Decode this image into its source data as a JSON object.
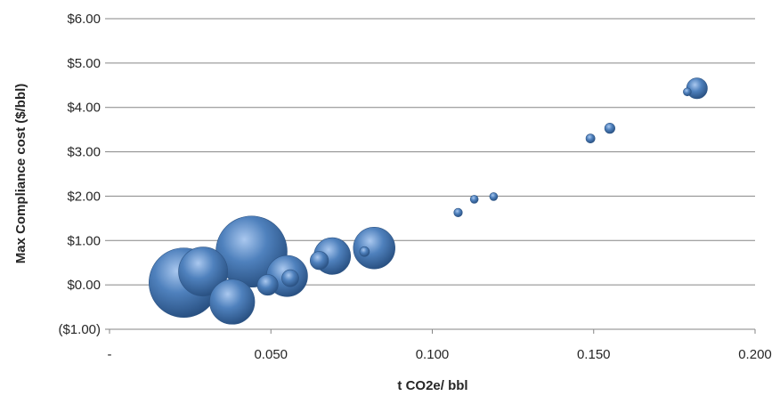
{
  "chart_data": {
    "type": "bubble",
    "title": "",
    "xlabel": "t CO2e/ bbl",
    "ylabel": "Max Compliance cost ($/bbl)",
    "xlim": [
      0,
      0.2
    ],
    "ylim": [
      -1,
      6
    ],
    "grid": "horizontal",
    "legend": "none",
    "x_ticks": [
      {
        "value": 0,
        "label": "-"
      },
      {
        "value": 0.05,
        "label": "0.050"
      },
      {
        "value": 0.1,
        "label": "0.100"
      },
      {
        "value": 0.15,
        "label": "0.150"
      },
      {
        "value": 0.2,
        "label": "0.200"
      }
    ],
    "y_ticks": [
      {
        "value": -1,
        "label": "($1.00)",
        "color": "#e0402b"
      },
      {
        "value": 0,
        "label": "$0.00"
      },
      {
        "value": 1,
        "label": "$1.00"
      },
      {
        "value": 2,
        "label": "$2.00"
      },
      {
        "value": 3,
        "label": "$3.00"
      },
      {
        "value": 4,
        "label": "$4.00"
      },
      {
        "value": 5,
        "label": "$5.00"
      },
      {
        "value": 6,
        "label": "$6.00"
      }
    ],
    "bubble_color": "#4f81bd",
    "points": [
      {
        "x": 0.023,
        "y": 0.05,
        "size": 100
      },
      {
        "x": 0.029,
        "y": 0.3,
        "size": 50
      },
      {
        "x": 0.044,
        "y": 0.75,
        "size": 105
      },
      {
        "x": 0.038,
        "y": -0.38,
        "size": 42
      },
      {
        "x": 0.055,
        "y": 0.2,
        "size": 35
      },
      {
        "x": 0.049,
        "y": 0.0,
        "size": 9
      },
      {
        "x": 0.056,
        "y": 0.15,
        "size": 6
      },
      {
        "x": 0.069,
        "y": 0.65,
        "size": 28
      },
      {
        "x": 0.065,
        "y": 0.55,
        "size": 7
      },
      {
        "x": 0.082,
        "y": 0.83,
        "size": 36
      },
      {
        "x": 0.079,
        "y": 0.75,
        "size": 2
      },
      {
        "x": 0.108,
        "y": 1.63,
        "size": 1.5
      },
      {
        "x": 0.113,
        "y": 1.93,
        "size": 1.3
      },
      {
        "x": 0.119,
        "y": 1.99,
        "size": 0.8
      },
      {
        "x": 0.149,
        "y": 3.3,
        "size": 1.7
      },
      {
        "x": 0.155,
        "y": 3.53,
        "size": 2.2
      },
      {
        "x": 0.182,
        "y": 4.43,
        "size": 9
      },
      {
        "x": 0.179,
        "y": 4.35,
        "size": 1
      }
    ]
  }
}
